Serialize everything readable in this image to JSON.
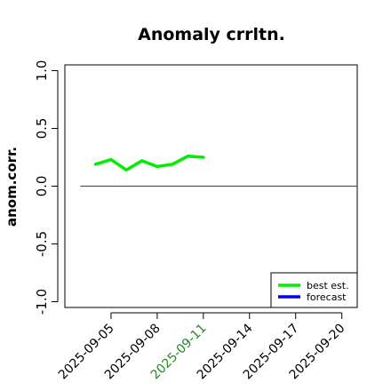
{
  "chart_data": {
    "type": "line",
    "title": "Anomaly crrltn.",
    "xlabel": "",
    "ylabel": "anom.corr.",
    "ylim": [
      -1.05,
      1.05
    ],
    "yticks": [
      -1.0,
      -0.5,
      0.0,
      0.5,
      1.0
    ],
    "ytick_labels": [
      "-1.0",
      "-0.5",
      "0.0",
      "0.5",
      "1.0"
    ],
    "xlim": [
      "2025-09-02",
      "2025-09-21"
    ],
    "xticks": [
      "2025-09-05",
      "2025-09-08",
      "2025-09-11",
      "2025-09-14",
      "2025-09-17",
      "2025-09-20"
    ],
    "highlight_tick": "2025-09-11",
    "reference_line": {
      "y": 0.0,
      "from": "2025-09-03",
      "to": "2025-09-21"
    },
    "grid": false,
    "legend": {
      "placement": "bottom-right",
      "entries": [
        "best est.",
        "forecast"
      ]
    },
    "series": [
      {
        "name": "best est.",
        "color": "#00ee00",
        "x": [
          "2025-09-04",
          "2025-09-05",
          "2025-09-06",
          "2025-09-07",
          "2025-09-08",
          "2025-09-09",
          "2025-09-10",
          "2025-09-11"
        ],
        "y": [
          0.19,
          0.23,
          0.14,
          0.22,
          0.17,
          0.19,
          0.26,
          0.25
        ]
      },
      {
        "name": "forecast",
        "color": "#0000ee",
        "x": [],
        "y": []
      }
    ],
    "colors": {
      "axis": "#000000",
      "reference": "#555555",
      "highlight": "#228b22"
    }
  }
}
